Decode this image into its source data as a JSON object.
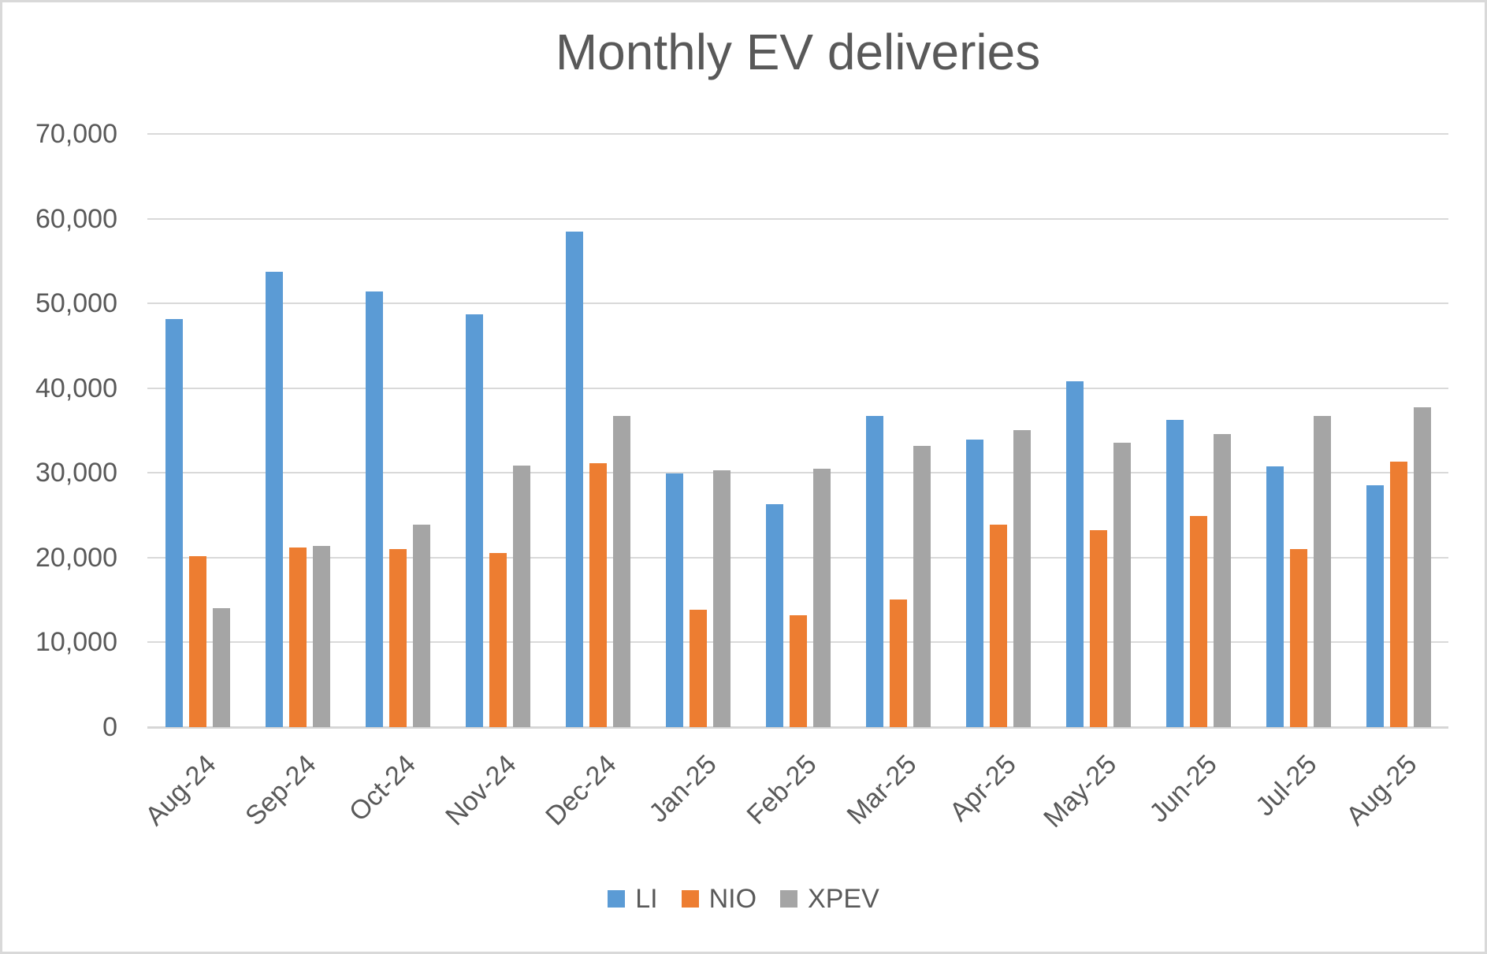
{
  "title": "Monthly EV deliveries",
  "chart_data": {
    "type": "bar",
    "title": "Monthly EV deliveries",
    "xlabel": "",
    "ylabel": "",
    "categories": [
      "Aug-24",
      "Sep-24",
      "Oct-24",
      "Nov-24",
      "Dec-24",
      "Jan-25",
      "Feb-25",
      "Mar-25",
      "Apr-25",
      "May-25",
      "Jun-25",
      "Jul-25",
      "Aug-25"
    ],
    "series": [
      {
        "name": "LI",
        "color": "#5B9BD5",
        "values": [
          48122,
          53709,
          51443,
          48740,
          58513,
          29927,
          26263,
          36674,
          33939,
          40856,
          36279,
          30731,
          28529
        ]
      },
      {
        "name": "NIO",
        "color": "#ED7D31",
        "values": [
          20176,
          21181,
          20976,
          20575,
          31138,
          13863,
          13192,
          15039,
          23900,
          23231,
          24925,
          21017,
          31305
        ]
      },
      {
        "name": "XPEV",
        "color": "#A5A5A5",
        "values": [
          14036,
          21352,
          23917,
          30895,
          36695,
          30350,
          30453,
          33205,
          35045,
          33525,
          34611,
          36717,
          37709
        ]
      }
    ],
    "ylim": [
      0,
      70000
    ],
    "ytick_step": 10000,
    "ytick_labels": [
      "0",
      "10,000",
      "20,000",
      "30,000",
      "40,000",
      "50,000",
      "60,000",
      "70,000"
    ],
    "grid": true,
    "legend_position": "bottom"
  },
  "legend": {
    "items": [
      {
        "label": "LI",
        "color": "#5B9BD5"
      },
      {
        "label": "NIO",
        "color": "#ED7D31"
      },
      {
        "label": "XPEV",
        "color": "#A5A5A5"
      }
    ]
  },
  "colors": {
    "text": "#595959",
    "gridline": "#D9D9D9",
    "frame": "#D9D9D9",
    "background": "#FFFFFF"
  }
}
